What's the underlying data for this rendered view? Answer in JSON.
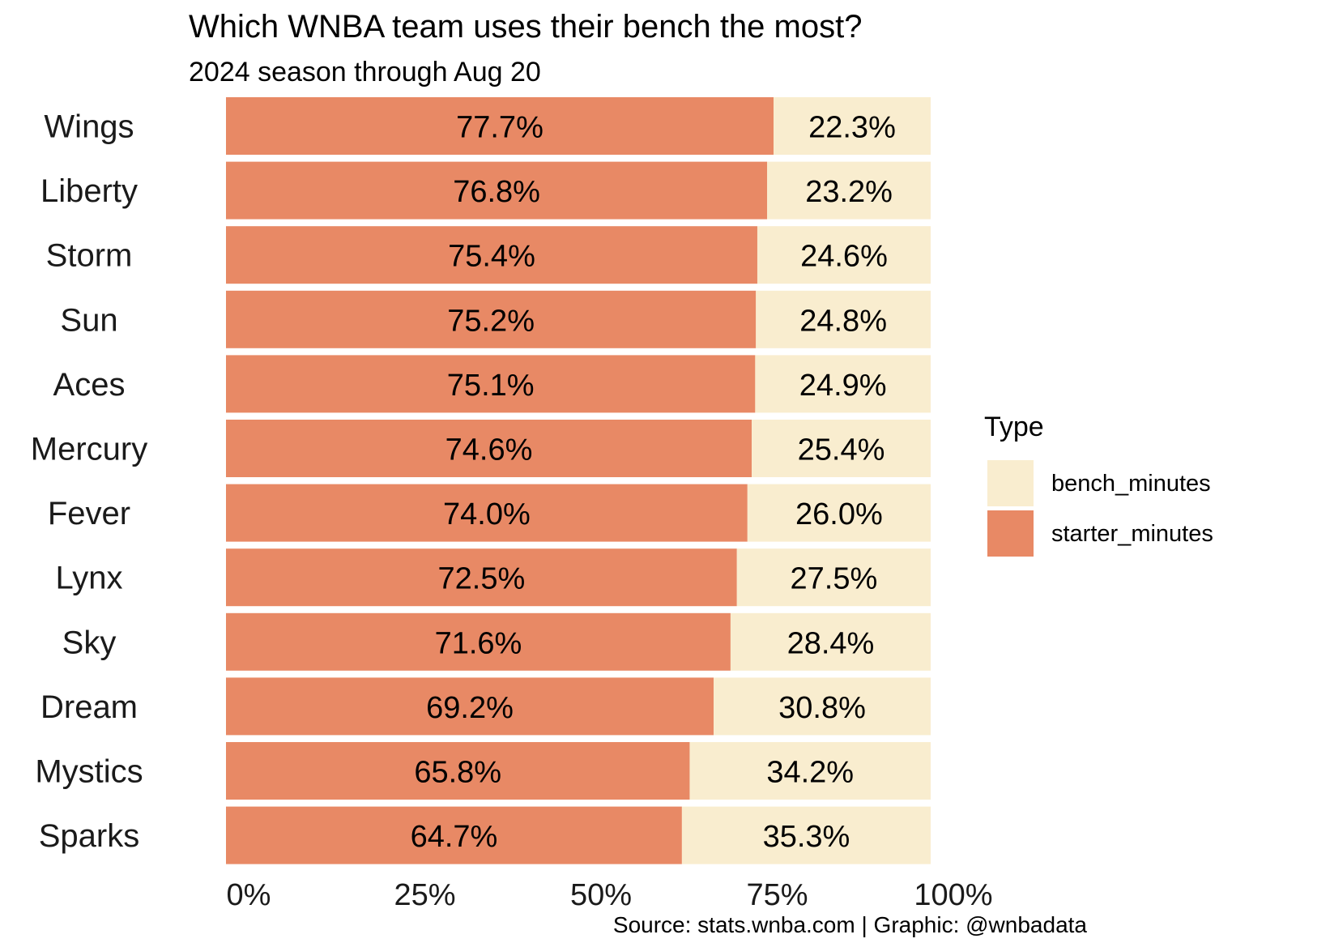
{
  "chart_data": {
    "type": "bar",
    "orientation": "horizontal",
    "stacked": true,
    "normalized": true,
    "title": "Which WNBA team uses their bench the most?",
    "subtitle": "2024 season through Aug 20",
    "caption": "Source: stats.wnba.com | Graphic: @wnbadata",
    "xlabel": "",
    "ylabel": "",
    "xlim": [
      0,
      100
    ],
    "x_ticks": [
      "0%",
      "25%",
      "50%",
      "75%",
      "100%"
    ],
    "grid": false,
    "legend": {
      "title": "Type",
      "position": "right",
      "entries": [
        "bench_minutes",
        "starter_minutes"
      ]
    },
    "categories": [
      "Wings",
      "Liberty",
      "Storm",
      "Sun",
      "Aces",
      "Mercury",
      "Fever",
      "Lynx",
      "Sky",
      "Dream",
      "Mystics",
      "Sparks"
    ],
    "series": [
      {
        "name": "starter_minutes",
        "color": "#E88965",
        "values": [
          77.7,
          76.8,
          75.4,
          75.2,
          75.1,
          74.6,
          74.0,
          72.5,
          71.6,
          69.2,
          65.8,
          64.7
        ],
        "labels": [
          "77.7%",
          "76.8%",
          "75.4%",
          "75.2%",
          "75.1%",
          "74.6%",
          "74.0%",
          "72.5%",
          "71.6%",
          "69.2%",
          "65.8%",
          "64.7%"
        ]
      },
      {
        "name": "bench_minutes",
        "color": "#F9EDCF",
        "values": [
          22.3,
          23.2,
          24.6,
          24.8,
          24.9,
          25.4,
          26.0,
          27.5,
          28.4,
          30.8,
          34.2,
          35.3
        ],
        "labels": [
          "22.3%",
          "23.2%",
          "24.6%",
          "24.8%",
          "24.9%",
          "25.4%",
          "26.0%",
          "27.5%",
          "28.4%",
          "30.8%",
          "34.2%",
          "35.3%"
        ]
      }
    ]
  }
}
